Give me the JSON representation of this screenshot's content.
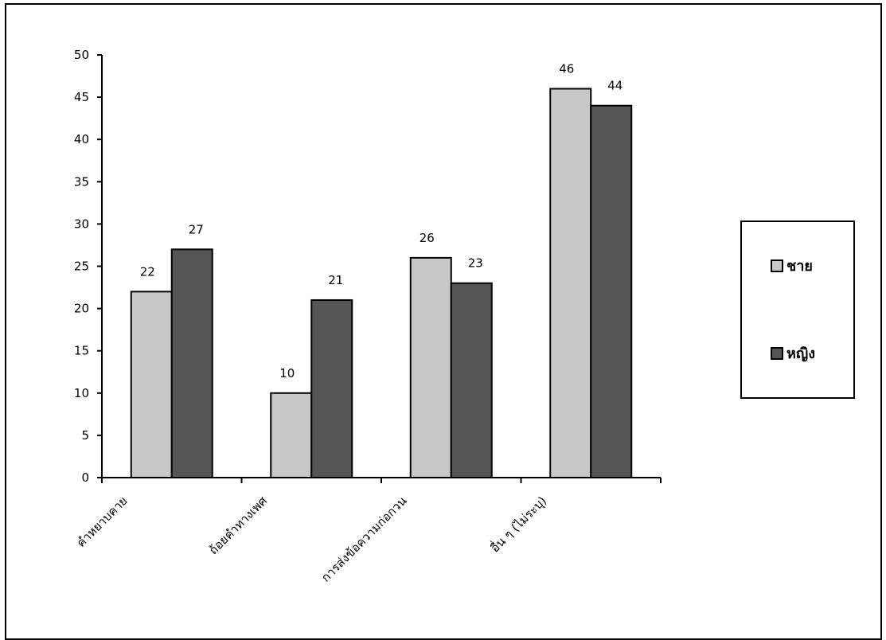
{
  "chart_data": {
    "type": "bar",
    "categories": [
      "คำหยาบคาย",
      "ถ้อยคำทางเพศ",
      "การส่งข้อความก่อกวน",
      "อื่น ๆ (ไม่ระบุ)"
    ],
    "series": [
      {
        "name": "ชาย",
        "values": [
          22,
          10,
          26,
          46
        ],
        "color": "#c8c8c8"
      },
      {
        "name": "หญิง",
        "values": [
          27,
          21,
          23,
          44
        ],
        "color": "#555555"
      }
    ],
    "ylim": [
      0,
      50
    ],
    "yticks": [
      0,
      5,
      10,
      15,
      20,
      25,
      30,
      35,
      40,
      45,
      50
    ],
    "grid": false,
    "legend_position": "right"
  }
}
